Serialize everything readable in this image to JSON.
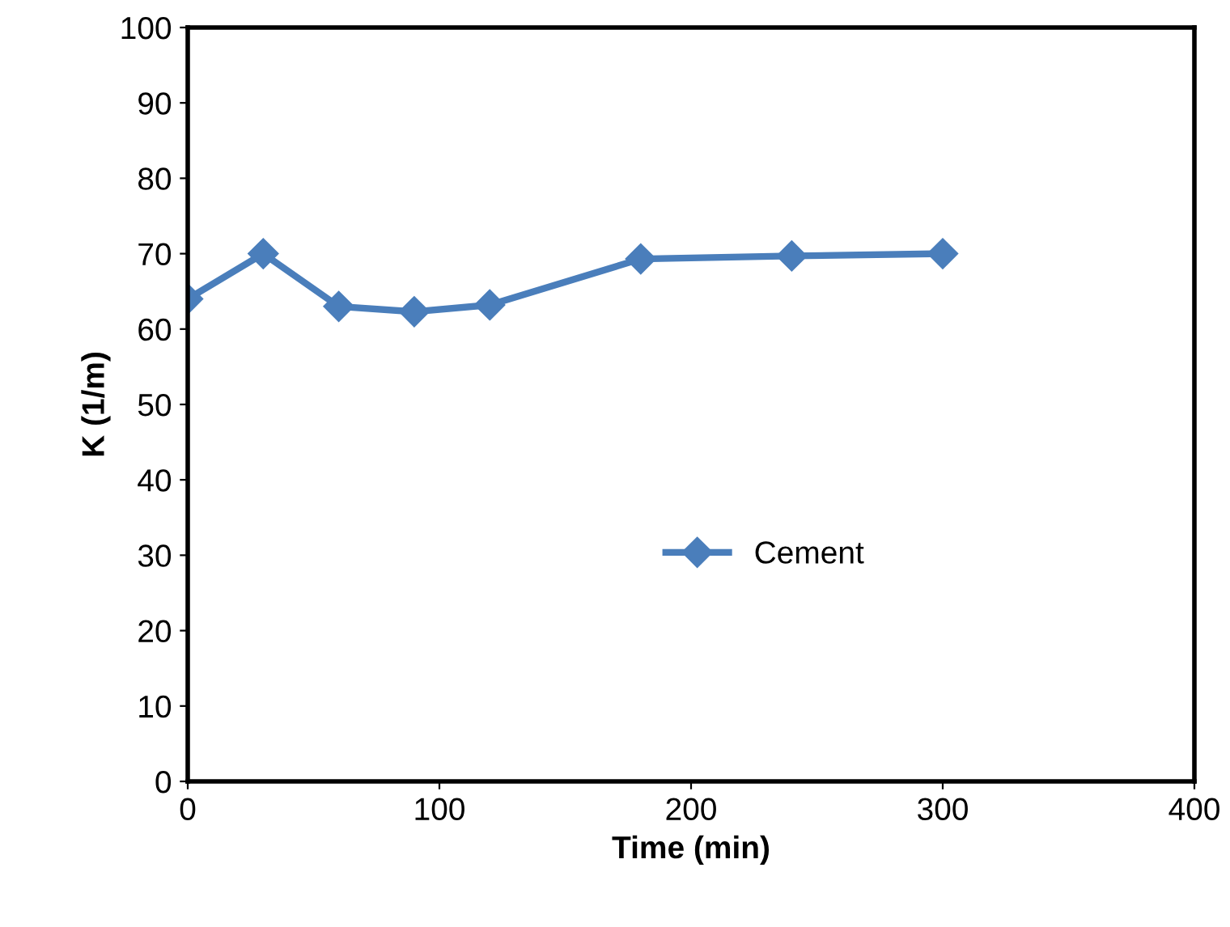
{
  "chart_data": {
    "type": "line",
    "xlabel": "Time (min)",
    "ylabel": "K (1/m)",
    "x": [
      0,
      30,
      60,
      90,
      120,
      180,
      240,
      300
    ],
    "series": [
      {
        "name": "Cement",
        "color": "#4a7ebb",
        "values": [
          64,
          70,
          63,
          62.3,
          63.2,
          69.3,
          69.7,
          70
        ]
      }
    ],
    "xlim": [
      0,
      400
    ],
    "xticks": [
      0,
      100,
      200,
      300,
      400
    ],
    "ylim": [
      0,
      100
    ],
    "yticks": [
      0,
      10,
      20,
      30,
      40,
      50,
      60,
      70,
      80,
      90,
      100
    ],
    "marker": "diamond",
    "line_style": "solid",
    "legend": "center right",
    "grid": false
  }
}
